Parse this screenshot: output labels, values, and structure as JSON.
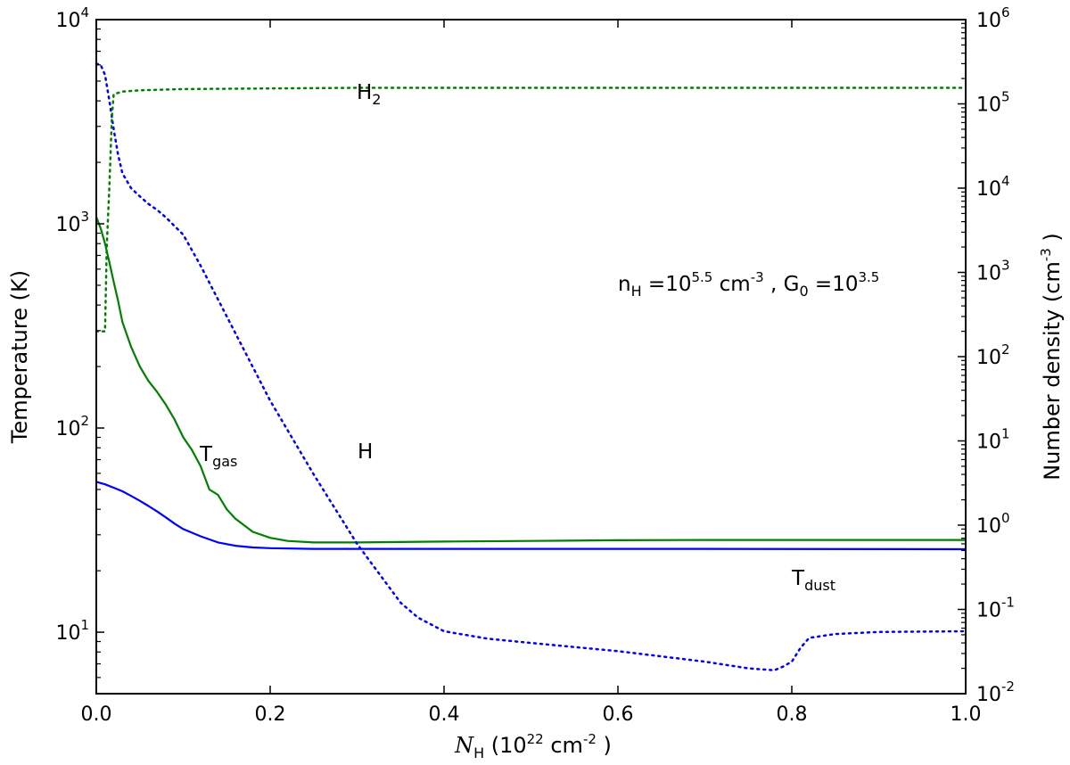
{
  "chart_data": {
    "type": "line",
    "xlabel": {
      "sym": "N",
      "sub": "H",
      "pre": " (10",
      "exp": "22",
      "post": "  cm",
      "exp2": "-2",
      "close": " )"
    },
    "ylabel_left": "Temperature (K)",
    "ylabel_right": {
      "pre": "Number density (cm",
      "exp": "-3",
      "close": " )"
    },
    "xlim": [
      0.0,
      1.0
    ],
    "ylim_left": [
      5,
      10000
    ],
    "ylim_right": [
      0.01,
      1000000
    ],
    "yscale": "log",
    "x_ticks": [
      "0.0",
      "0.2",
      "0.4",
      "0.6",
      "0.8",
      "1.0"
    ],
    "left_ticks": [
      {
        "base": "10",
        "exp": "1"
      },
      {
        "base": "10",
        "exp": "2"
      },
      {
        "base": "10",
        "exp": "3"
      },
      {
        "base": "10",
        "exp": "4"
      }
    ],
    "right_ticks": [
      {
        "base": "10",
        "exp": "-2"
      },
      {
        "base": "10",
        "exp": "-1"
      },
      {
        "base": "10",
        "exp": "0"
      },
      {
        "base": "10",
        "exp": "1"
      },
      {
        "base": "10",
        "exp": "2"
      },
      {
        "base": "10",
        "exp": "3"
      },
      {
        "base": "10",
        "exp": "4"
      },
      {
        "base": "10",
        "exp": "5"
      },
      {
        "base": "10",
        "exp": "6"
      }
    ],
    "annotations": {
      "params": {
        "n": "n",
        "n_sub": "H",
        "eq1": " =10",
        "exp1": "5.5",
        "unit": "  cm",
        "exp_unit": "-3",
        "sep": " , G",
        "g_sub": "0",
        "eq2": " =10",
        "exp2": "3.5"
      },
      "tgas": {
        "base": "T",
        "sub": "gas"
      },
      "tdust": {
        "base": "T",
        "sub": "dust"
      },
      "h": "H",
      "h2": {
        "base": "H",
        "sub": "2"
      }
    },
    "series": [
      {
        "name": "T_gas",
        "axis": "left",
        "style": "solid",
        "color": "#008000",
        "x": [
          0.0,
          0.005,
          0.01,
          0.015,
          0.02,
          0.025,
          0.03,
          0.04,
          0.05,
          0.06,
          0.07,
          0.08,
          0.09,
          0.1,
          0.11,
          0.12,
          0.13,
          0.14,
          0.15,
          0.16,
          0.18,
          0.2,
          0.22,
          0.25,
          0.3,
          0.4,
          0.5,
          0.6,
          0.7,
          0.8,
          0.9,
          1.0
        ],
        "y": [
          1080,
          950,
          800,
          650,
          520,
          420,
          330,
          250,
          200,
          170,
          150,
          130,
          110,
          90,
          78,
          65,
          50,
          47,
          40,
          36,
          31,
          29,
          28,
          27.5,
          27.5,
          27.8,
          28.0,
          28.2,
          28.3,
          28.3,
          28.3,
          28.3
        ]
      },
      {
        "name": "T_dust",
        "axis": "left",
        "style": "solid",
        "color": "#0000ff",
        "x": [
          0.0,
          0.01,
          0.02,
          0.03,
          0.04,
          0.05,
          0.06,
          0.07,
          0.08,
          0.09,
          0.1,
          0.12,
          0.14,
          0.16,
          0.18,
          0.2,
          0.25,
          0.3,
          0.5,
          0.7,
          1.0
        ],
        "y": [
          54.5,
          53,
          51,
          49,
          46.5,
          44,
          41.5,
          39,
          36.5,
          34,
          32,
          29.5,
          27.5,
          26.5,
          26,
          25.8,
          25.6,
          25.6,
          25.6,
          25.6,
          25.5
        ]
      },
      {
        "name": "H",
        "axis": "right",
        "style": "dotted",
        "color": "#0000ff",
        "x": [
          0.0,
          0.005,
          0.01,
          0.015,
          0.02,
          0.025,
          0.03,
          0.04,
          0.05,
          0.06,
          0.07,
          0.08,
          0.1,
          0.12,
          0.15,
          0.2,
          0.25,
          0.3,
          0.35,
          0.37,
          0.4,
          0.45,
          0.5,
          0.6,
          0.7,
          0.75,
          0.78,
          0.79,
          0.8,
          0.81,
          0.82,
          0.85,
          0.9,
          1.0
        ],
        "y": [
          300000,
          290000,
          220000,
          110000,
          50000,
          25000,
          15000,
          10000,
          8000,
          6500,
          5500,
          4500,
          2800,
          1200,
          300,
          30,
          4,
          0.6,
          0.12,
          0.08,
          0.055,
          0.045,
          0.04,
          0.032,
          0.024,
          0.02,
          0.019,
          0.021,
          0.024,
          0.035,
          0.046,
          0.051,
          0.054,
          0.055
        ]
      },
      {
        "name": "H2",
        "axis": "right",
        "style": "dotted",
        "color": "#008000",
        "x": [
          0.0,
          0.01,
          0.012,
          0.015,
          0.018,
          0.02,
          0.03,
          0.05,
          0.1,
          0.3,
          0.5,
          1.0
        ],
        "y": [
          200,
          200,
          2000,
          10000,
          70000,
          130000,
          140000,
          145000,
          150000,
          155000,
          155000,
          155000
        ]
      }
    ]
  }
}
